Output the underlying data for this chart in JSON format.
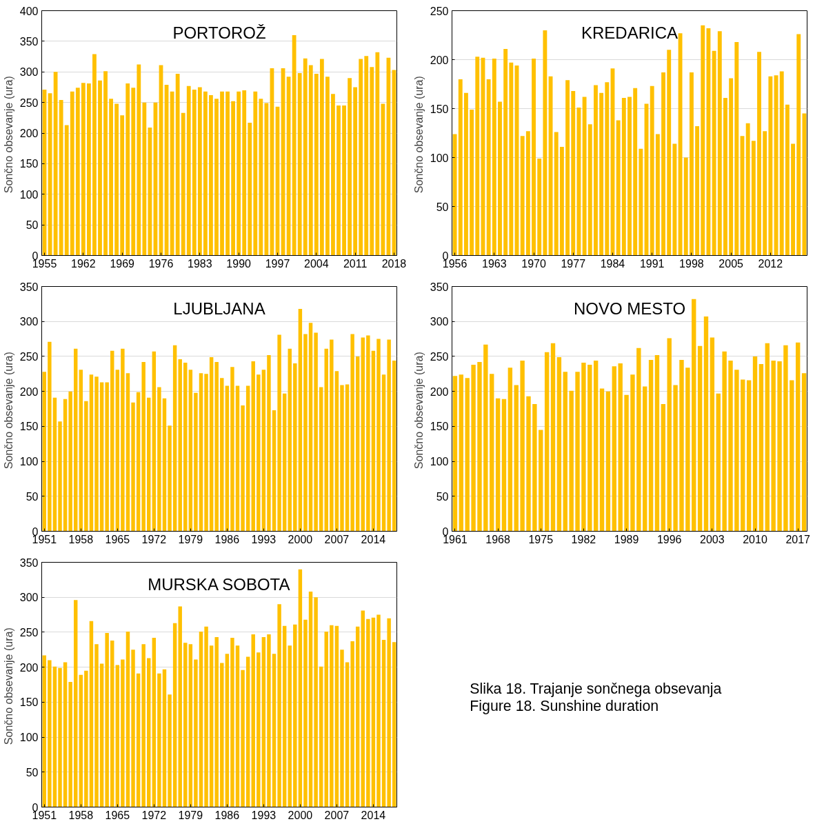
{
  "chart_data": [
    {
      "type": "bar",
      "title": "PORTOROŽ",
      "ylabel": "Sončno obsevanje  (ura)",
      "color": "#ffc000",
      "grid": "y",
      "x": [
        1955,
        1956,
        1957,
        1958,
        1959,
        1960,
        1961,
        1962,
        1963,
        1964,
        1965,
        1966,
        1967,
        1968,
        1969,
        1970,
        1971,
        1972,
        1973,
        1974,
        1975,
        1976,
        1977,
        1978,
        1979,
        1980,
        1981,
        1982,
        1983,
        1984,
        1985,
        1986,
        1987,
        1988,
        1989,
        1990,
        1991,
        1992,
        1993,
        1994,
        1995,
        1996,
        1997,
        1998,
        1999,
        2000,
        2001,
        2002,
        2003,
        2004,
        2005,
        2006,
        2007,
        2008,
        2009,
        2010,
        2011,
        2012,
        2013,
        2014,
        2015,
        2016,
        2017,
        2018
      ],
      "values": [
        271,
        265,
        300,
        254,
        213,
        268,
        274,
        282,
        281,
        329,
        286,
        301,
        256,
        248,
        229,
        281,
        274,
        312,
        250,
        209,
        250,
        311,
        279,
        268,
        297,
        233,
        277,
        271,
        275,
        268,
        262,
        256,
        268,
        268,
        252,
        268,
        270,
        217,
        268,
        256,
        249,
        306,
        243,
        306,
        292,
        360,
        298,
        322,
        311,
        297,
        321,
        292,
        264,
        245,
        245,
        290,
        275,
        321,
        326,
        308,
        332,
        248,
        323,
        303
      ],
      "xlim": [
        1954.5,
        2018.5
      ],
      "xticks": [
        1955,
        1962,
        1969,
        1976,
        1983,
        1990,
        1997,
        2004,
        2011,
        2018
      ],
      "ylim": [
        0,
        400
      ],
      "yticks": [
        0,
        50,
        100,
        150,
        200,
        250,
        300,
        350,
        400
      ]
    },
    {
      "type": "bar",
      "title": "KREDARICA",
      "ylabel": "Sončno obsevanje  (ura)",
      "color": "#ffc000",
      "grid": "y",
      "x": [
        1956,
        1957,
        1958,
        1959,
        1960,
        1961,
        1962,
        1963,
        1964,
        1965,
        1966,
        1967,
        1968,
        1969,
        1970,
        1971,
        1972,
        1973,
        1974,
        1975,
        1976,
        1977,
        1978,
        1979,
        1980,
        1981,
        1982,
        1983,
        1984,
        1985,
        1986,
        1987,
        1988,
        1989,
        1990,
        1991,
        1992,
        1993,
        1994,
        1995,
        1996,
        1997,
        1998,
        1999,
        2000,
        2001,
        2002,
        2003,
        2004,
        2005,
        2006,
        2007,
        2008,
        2009,
        2010,
        2011,
        2012,
        2013,
        2014,
        2015,
        2016,
        2017,
        2018
      ],
      "values": [
        124,
        180,
        166,
        149,
        203,
        202,
        180,
        201,
        157,
        211,
        197,
        194,
        122,
        127,
        201,
        99,
        230,
        183,
        126,
        111,
        179,
        168,
        151,
        162,
        134,
        174,
        166,
        177,
        191,
        138,
        161,
        162,
        171,
        109,
        155,
        173,
        124,
        187,
        210,
        114,
        227,
        100,
        187,
        132,
        235,
        232,
        209,
        229,
        161,
        181,
        218,
        122,
        135,
        117,
        208,
        127,
        183,
        184,
        188,
        154,
        114,
        226,
        145
      ],
      "xlim": [
        1955.5,
        2018.5
      ],
      "xticks": [
        1956,
        1963,
        1970,
        1977,
        1984,
        1991,
        1998,
        2005,
        2012
      ],
      "ylim": [
        0,
        250
      ],
      "yticks": [
        0,
        50,
        100,
        150,
        200,
        250
      ]
    },
    {
      "type": "bar",
      "title": "LJUBLJANA",
      "ylabel": "Sončno obsevanje  (ura)",
      "color": "#ffc000",
      "grid": "y",
      "x": [
        1951,
        1952,
        1953,
        1954,
        1955,
        1956,
        1957,
        1958,
        1959,
        1960,
        1961,
        1962,
        1963,
        1964,
        1965,
        1966,
        1967,
        1968,
        1969,
        1970,
        1971,
        1972,
        1973,
        1974,
        1975,
        1976,
        1977,
        1978,
        1979,
        1980,
        1981,
        1982,
        1983,
        1984,
        1985,
        1986,
        1987,
        1988,
        1989,
        1990,
        1991,
        1992,
        1993,
        1994,
        1995,
        1996,
        1997,
        1998,
        1999,
        2000,
        2001,
        2002,
        2003,
        2004,
        2005,
        2006,
        2007,
        2008,
        2009,
        2010,
        2011,
        2012,
        2013,
        2014,
        2015,
        2016,
        2017,
        2018
      ],
      "values": [
        228,
        271,
        191,
        157,
        189,
        200,
        261,
        231,
        186,
        224,
        221,
        213,
        213,
        258,
        231,
        261,
        226,
        184,
        199,
        242,
        191,
        257,
        206,
        190,
        151,
        266,
        246,
        241,
        231,
        198,
        226,
        225,
        249,
        242,
        219,
        208,
        235,
        208,
        180,
        208,
        243,
        224,
        231,
        252,
        173,
        281,
        197,
        261,
        240,
        318,
        282,
        298,
        284,
        206,
        261,
        274,
        229,
        209,
        210,
        282,
        250,
        277,
        280,
        258,
        275,
        224,
        274,
        244
      ],
      "xlim": [
        1950.5,
        2018.5
      ],
      "xticks": [
        1951,
        1958,
        1965,
        1972,
        1979,
        1986,
        1993,
        2000,
        2007,
        2014
      ],
      "ylim": [
        0,
        350
      ],
      "yticks": [
        0,
        50,
        100,
        150,
        200,
        250,
        300,
        350
      ]
    },
    {
      "type": "bar",
      "title": "NOVO MESTO",
      "ylabel": "Sončno obsevanje  (ura)",
      "color": "#ffc000",
      "grid": "y",
      "x": [
        1961,
        1962,
        1963,
        1964,
        1965,
        1966,
        1967,
        1968,
        1969,
        1970,
        1971,
        1972,
        1973,
        1974,
        1975,
        1976,
        1977,
        1978,
        1979,
        1980,
        1981,
        1982,
        1983,
        1984,
        1985,
        1986,
        1987,
        1988,
        1989,
        1990,
        1991,
        1992,
        1993,
        1994,
        1995,
        1996,
        1997,
        1998,
        1999,
        2000,
        2001,
        2002,
        2003,
        2004,
        2005,
        2006,
        2007,
        2008,
        2009,
        2010,
        2011,
        2012,
        2013,
        2014,
        2015,
        2016,
        2017,
        2018
      ],
      "values": [
        222,
        224,
        219,
        238,
        242,
        267,
        225,
        190,
        189,
        234,
        209,
        244,
        193,
        182,
        145,
        256,
        269,
        249,
        228,
        201,
        228,
        241,
        238,
        244,
        204,
        200,
        236,
        240,
        195,
        224,
        262,
        207,
        245,
        252,
        182,
        276,
        209,
        245,
        234,
        332,
        265,
        307,
        277,
        197,
        257,
        244,
        231,
        217,
        216,
        250,
        239,
        269,
        244,
        243,
        266,
        216,
        270,
        226
      ],
      "xlim": [
        1960.5,
        2018.5
      ],
      "xticks": [
        1961,
        1968,
        1975,
        1982,
        1989,
        1996,
        2003,
        2010,
        2017
      ],
      "ylim": [
        0,
        350
      ],
      "yticks": [
        0,
        50,
        100,
        150,
        200,
        250,
        300,
        350
      ]
    },
    {
      "type": "bar",
      "title": "MURSKA SOBOTA",
      "ylabel": "Sončno obsevanje  (ura)",
      "color": "#ffc000",
      "grid": "y",
      "x": [
        1951,
        1952,
        1953,
        1954,
        1955,
        1956,
        1957,
        1958,
        1959,
        1960,
        1961,
        1962,
        1963,
        1964,
        1965,
        1966,
        1967,
        1968,
        1969,
        1970,
        1971,
        1972,
        1973,
        1974,
        1975,
        1976,
        1977,
        1978,
        1979,
        1980,
        1981,
        1982,
        1983,
        1984,
        1985,
        1986,
        1987,
        1988,
        1989,
        1990,
        1991,
        1992,
        1993,
        1994,
        1995,
        1996,
        1997,
        1998,
        1999,
        2000,
        2001,
        2002,
        2003,
        2004,
        2005,
        2006,
        2007,
        2008,
        2009,
        2010,
        2011,
        2012,
        2013,
        2014,
        2015,
        2016,
        2017,
        2018
      ],
      "values": [
        217,
        210,
        201,
        199,
        207,
        179,
        296,
        189,
        195,
        266,
        233,
        205,
        249,
        238,
        203,
        211,
        251,
        225,
        191,
        233,
        213,
        242,
        191,
        197,
        161,
        263,
        287,
        235,
        233,
        211,
        251,
        258,
        231,
        243,
        206,
        219,
        242,
        231,
        196,
        215,
        247,
        221,
        243,
        247,
        219,
        290,
        259,
        231,
        261,
        340,
        268,
        308,
        300,
        201,
        251,
        260,
        259,
        225,
        207,
        237,
        258,
        281,
        269,
        271,
        275,
        239,
        270,
        236
      ],
      "xlim": [
        1950.5,
        2018.5
      ],
      "xticks": [
        1951,
        1958,
        1965,
        1972,
        1979,
        1986,
        1993,
        2000,
        2007,
        2014
      ],
      "ylim": [
        0,
        350
      ],
      "yticks": [
        0,
        50,
        100,
        150,
        200,
        250,
        300,
        350
      ]
    },
    {
      "type": "other",
      "annotations": [
        "Slika 18. Trajanje sončnega obsevanja",
        "Figure 18. Sunshine duration"
      ]
    }
  ]
}
